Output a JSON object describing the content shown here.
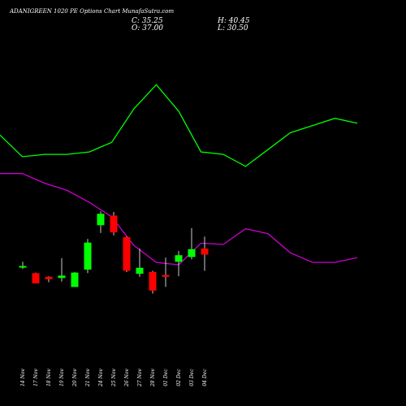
{
  "header": {
    "title": "ADANIGREEN 1020 PE Options Chart MunafaSutra.com"
  },
  "ohlc": {
    "close": "C: 35.25",
    "high": "H: 40.45",
    "open": "O: 37.00",
    "low": "L: 30.50"
  },
  "colors": {
    "background": "#000000",
    "bull": "#00ff00",
    "bear": "#ff0000",
    "wick": "#ffffff",
    "line_upper": "#00ff00",
    "line_lower": "#cc00cc",
    "text": "#ffffff"
  },
  "chart_data": {
    "type": "candlestick",
    "title": "ADANIGREEN 1020 PE Options Chart MunafaSutra.com",
    "categories": [
      "14 Nov",
      "17 Nov",
      "18 Nov",
      "19 Nov",
      "20 Nov",
      "21 Nov",
      "24 Nov",
      "25 Nov",
      "26 Nov",
      "27 Nov",
      "28 Nov",
      "01 Dec",
      "02 Dec",
      "03 Dec",
      "04 Dec"
    ],
    "candles": [
      {
        "open": 8.0,
        "close": 9.0,
        "high": 12.5,
        "low": 6.5
      },
      {
        "open": 3.0,
        "close": -5.5,
        "high": 3.5,
        "low": -5.5
      },
      {
        "open": 0.0,
        "close": -2.0,
        "high": 0.5,
        "low": -4.5
      },
      {
        "open": -1.0,
        "close": 1.0,
        "high": 15.5,
        "low": -4.0
      },
      {
        "open": -8.5,
        "close": 3.5,
        "high": 4.0,
        "low": -8.5
      },
      {
        "open": 6.0,
        "close": 28.5,
        "high": 31.5,
        "low": 3.0
      },
      {
        "open": 43.0,
        "close": 52.5,
        "high": 54.5,
        "low": 36.5
      },
      {
        "open": 51.0,
        "close": 37.0,
        "high": 54.0,
        "low": 34.5
      },
      {
        "open": 33.0,
        "close": 5.0,
        "high": 33.5,
        "low": 4.0
      },
      {
        "open": 2.5,
        "close": 7.5,
        "high": 23.5,
        "low": 0.0
      },
      {
        "open": 4.0,
        "close": -11.5,
        "high": 5.0,
        "low": -14.0
      },
      {
        "open": 1.5,
        "close": 0.0,
        "high": 16.0,
        "low": -8.5
      },
      {
        "open": 12.5,
        "close": 18.0,
        "high": 21.5,
        "low": 0.5
      },
      {
        "open": 16.5,
        "close": 23.0,
        "high": 40.5,
        "low": 14.5
      },
      {
        "open": 23.5,
        "close": 18.5,
        "high": 33.5,
        "low": 5.0
      }
    ],
    "line_series": [
      {
        "points": [
          [
            0,
            118
          ],
          [
            1,
            100
          ],
          [
            2,
            102
          ],
          [
            3,
            102
          ],
          [
            4,
            104
          ],
          [
            5,
            112
          ],
          [
            6,
            140
          ],
          [
            7,
            160
          ],
          [
            8,
            138
          ],
          [
            9,
            104
          ],
          [
            10,
            102
          ],
          [
            11,
            92
          ],
          [
            12,
            106
          ],
          [
            13,
            120
          ],
          [
            14,
            126
          ],
          [
            15,
            132
          ],
          [
            16,
            128
          ]
        ]
      },
      {
        "points": [
          [
            0,
            86
          ],
          [
            1,
            86
          ],
          [
            2,
            78
          ],
          [
            3,
            72
          ],
          [
            4,
            62
          ],
          [
            5,
            50
          ],
          [
            6,
            26
          ],
          [
            7,
            12
          ],
          [
            8,
            10
          ],
          [
            9,
            28
          ],
          [
            10,
            27
          ],
          [
            11,
            40
          ],
          [
            12,
            36
          ],
          [
            13,
            20
          ],
          [
            14,
            12
          ],
          [
            15,
            12
          ],
          [
            16,
            16
          ]
        ]
      }
    ],
    "ylim": [
      -40,
      190
    ]
  }
}
